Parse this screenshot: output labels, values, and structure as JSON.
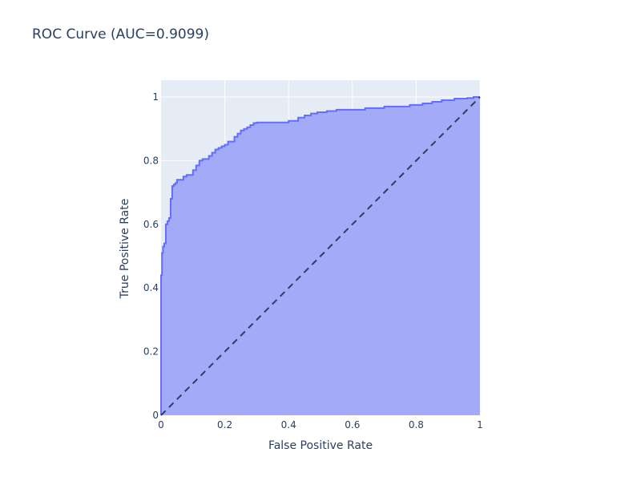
{
  "chart_data": {
    "type": "area",
    "title": "ROC Curve (AUC=0.9099)",
    "xlabel": "False Positive Rate",
    "ylabel": "True Positive Rate",
    "xlim": [
      0,
      1
    ],
    "ylim": [
      0,
      1
    ],
    "x_ticks": [
      "0",
      "0.2",
      "0.4",
      "0.6",
      "0.8",
      "1"
    ],
    "y_ticks": [
      "0",
      "0.2",
      "0.4",
      "0.6",
      "0.8",
      "1"
    ],
    "grid": true,
    "series": [
      {
        "line_color": "#636efa",
        "fill_color": "#a3aaf8",
        "x": [
          0,
          0,
          0.003,
          0.003,
          0.006,
          0.006,
          0.01,
          0.01,
          0.015,
          0.015,
          0.02,
          0.02,
          0.025,
          0.025,
          0.03,
          0.03,
          0.035,
          0.035,
          0.04,
          0.04,
          0.045,
          0.045,
          0.05,
          0.05,
          0.07,
          0.07,
          0.08,
          0.08,
          0.1,
          0.1,
          0.11,
          0.11,
          0.12,
          0.12,
          0.13,
          0.13,
          0.15,
          0.15,
          0.16,
          0.16,
          0.17,
          0.17,
          0.18,
          0.18,
          0.19,
          0.19,
          0.2,
          0.2,
          0.21,
          0.21,
          0.23,
          0.23,
          0.24,
          0.24,
          0.25,
          0.25,
          0.26,
          0.26,
          0.27,
          0.27,
          0.28,
          0.28,
          0.29,
          0.29,
          0.3,
          0.3,
          0.4,
          0.4,
          0.43,
          0.43,
          0.45,
          0.45,
          0.47,
          0.47,
          0.49,
          0.49,
          0.52,
          0.52,
          0.55,
          0.55,
          0.64,
          0.64,
          0.7,
          0.7,
          0.78,
          0.78,
          0.82,
          0.82,
          0.85,
          0.85,
          0.88,
          0.88,
          0.92,
          0.92,
          0.96,
          0.96,
          0.98,
          0.98,
          1
        ],
        "y": [
          0,
          0.44,
          0.44,
          0.51,
          0.51,
          0.53,
          0.53,
          0.54,
          0.54,
          0.6,
          0.6,
          0.61,
          0.61,
          0.62,
          0.62,
          0.68,
          0.68,
          0.72,
          0.72,
          0.725,
          0.725,
          0.73,
          0.73,
          0.74,
          0.74,
          0.75,
          0.75,
          0.755,
          0.755,
          0.77,
          0.77,
          0.785,
          0.785,
          0.8,
          0.8,
          0.805,
          0.805,
          0.815,
          0.815,
          0.825,
          0.825,
          0.835,
          0.835,
          0.84,
          0.84,
          0.845,
          0.845,
          0.85,
          0.85,
          0.86,
          0.86,
          0.875,
          0.875,
          0.885,
          0.885,
          0.895,
          0.895,
          0.9,
          0.9,
          0.905,
          0.905,
          0.912,
          0.912,
          0.918,
          0.918,
          0.92,
          0.92,
          0.925,
          0.925,
          0.935,
          0.935,
          0.942,
          0.942,
          0.948,
          0.948,
          0.952,
          0.952,
          0.956,
          0.956,
          0.96,
          0.96,
          0.965,
          0.965,
          0.97,
          0.97,
          0.975,
          0.975,
          0.98,
          0.98,
          0.985,
          0.985,
          0.99,
          0.99,
          0.995,
          0.995,
          0.997,
          0.997,
          1,
          1
        ]
      },
      {
        "line_color": "#2a3f5f",
        "dash": "dashed",
        "x": [
          0,
          1
        ],
        "y": [
          0,
          1
        ]
      }
    ]
  }
}
